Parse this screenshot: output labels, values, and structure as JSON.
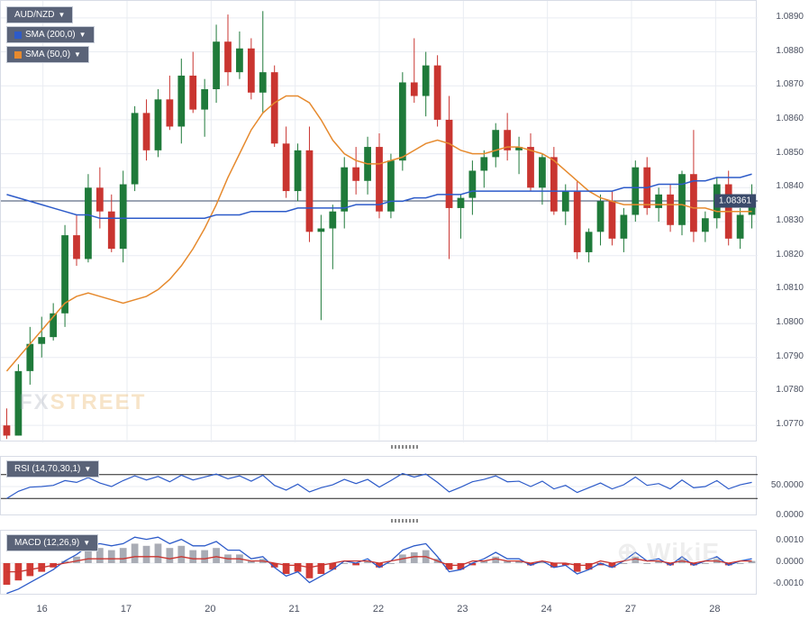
{
  "symbol": "AUD/NZD",
  "indicators": {
    "sma200": {
      "label": "SMA (200,0)",
      "color": "#2d5bc9",
      "sq": "#2d5bc9"
    },
    "sma50": {
      "label": "SMA (50,0)",
      "color": "#e68a2e",
      "sq": "#e68a2e"
    },
    "rsi": {
      "label": "RSI (14,70,30,1)",
      "color": "#2d5bc9"
    },
    "macd": {
      "label": "MACD (12,26,9)",
      "line_color": "#2d5bc9",
      "signal_color": "#c93530",
      "hist_pos": "#a9acb5",
      "hist_neg": "#d13a34"
    }
  },
  "price": {
    "current": "1.08361",
    "ymin": 1.0765,
    "ymax": 1.0895,
    "yticks": [
      "1.0890",
      "1.0880",
      "1.0870",
      "1.0860",
      "1.0850",
      "1.0840",
      "1.0830",
      "1.0820",
      "1.0810",
      "1.0800",
      "1.0790",
      "1.0780",
      "1.0770"
    ],
    "candles": [
      {
        "o": 1.077,
        "h": 1.0775,
        "l": 1.0766,
        "c": 1.0767
      },
      {
        "o": 1.0767,
        "h": 1.0788,
        "l": 1.0767,
        "c": 1.0786
      },
      {
        "o": 1.0786,
        "h": 1.0799,
        "l": 1.0782,
        "c": 1.0794
      },
      {
        "o": 1.0794,
        "h": 1.0802,
        "l": 1.079,
        "c": 1.0796
      },
      {
        "o": 1.0796,
        "h": 1.0806,
        "l": 1.0795,
        "c": 1.0803
      },
      {
        "o": 1.0803,
        "h": 1.0829,
        "l": 1.0799,
        "c": 1.0826
      },
      {
        "o": 1.0826,
        "h": 1.0832,
        "l": 1.0817,
        "c": 1.0819
      },
      {
        "o": 1.0819,
        "h": 1.0844,
        "l": 1.0818,
        "c": 1.084
      },
      {
        "o": 1.084,
        "h": 1.0846,
        "l": 1.0828,
        "c": 1.0833
      },
      {
        "o": 1.0833,
        "h": 1.0838,
        "l": 1.0821,
        "c": 1.0822
      },
      {
        "o": 1.0822,
        "h": 1.0845,
        "l": 1.0818,
        "c": 1.0841
      },
      {
        "o": 1.0841,
        "h": 1.0864,
        "l": 1.0839,
        "c": 1.0862
      },
      {
        "o": 1.0862,
        "h": 1.0866,
        "l": 1.0848,
        "c": 1.0851
      },
      {
        "o": 1.0851,
        "h": 1.0869,
        "l": 1.0849,
        "c": 1.0866
      },
      {
        "o": 1.0866,
        "h": 1.0873,
        "l": 1.0857,
        "c": 1.0858
      },
      {
        "o": 1.0858,
        "h": 1.0878,
        "l": 1.0853,
        "c": 1.0873
      },
      {
        "o": 1.0873,
        "h": 1.088,
        "l": 1.0862,
        "c": 1.0863
      },
      {
        "o": 1.0863,
        "h": 1.0872,
        "l": 1.0855,
        "c": 1.0869
      },
      {
        "o": 1.0869,
        "h": 1.0888,
        "l": 1.0865,
        "c": 1.0883
      },
      {
        "o": 1.0883,
        "h": 1.0891,
        "l": 1.087,
        "c": 1.0874
      },
      {
        "o": 1.0874,
        "h": 1.0886,
        "l": 1.0872,
        "c": 1.0881
      },
      {
        "o": 1.0881,
        "h": 1.0884,
        "l": 1.0866,
        "c": 1.0868
      },
      {
        "o": 1.0868,
        "h": 1.0892,
        "l": 1.0862,
        "c": 1.0874
      },
      {
        "o": 1.0874,
        "h": 1.0876,
        "l": 1.0852,
        "c": 1.0853
      },
      {
        "o": 1.0853,
        "h": 1.0858,
        "l": 1.0837,
        "c": 1.0839
      },
      {
        "o": 1.0839,
        "h": 1.0853,
        "l": 1.0836,
        "c": 1.0851
      },
      {
        "o": 1.0851,
        "h": 1.0858,
        "l": 1.0824,
        "c": 1.0827
      },
      {
        "o": 1.0827,
        "h": 1.0832,
        "l": 1.0801,
        "c": 1.0828
      },
      {
        "o": 1.0828,
        "h": 1.0835,
        "l": 1.0816,
        "c": 1.0833
      },
      {
        "o": 1.0833,
        "h": 1.0849,
        "l": 1.0828,
        "c": 1.0846
      },
      {
        "o": 1.0846,
        "h": 1.0852,
        "l": 1.0838,
        "c": 1.0842
      },
      {
        "o": 1.0842,
        "h": 1.0855,
        "l": 1.0838,
        "c": 1.0852
      },
      {
        "o": 1.0852,
        "h": 1.0856,
        "l": 1.0831,
        "c": 1.0833
      },
      {
        "o": 1.0833,
        "h": 1.085,
        "l": 1.0831,
        "c": 1.0848
      },
      {
        "o": 1.0848,
        "h": 1.0874,
        "l": 1.0845,
        "c": 1.0871
      },
      {
        "o": 1.0871,
        "h": 1.0884,
        "l": 1.0865,
        "c": 1.0867
      },
      {
        "o": 1.0867,
        "h": 1.088,
        "l": 1.0861,
        "c": 1.0876
      },
      {
        "o": 1.0876,
        "h": 1.0879,
        "l": 1.0858,
        "c": 1.086
      },
      {
        "o": 1.086,
        "h": 1.0867,
        "l": 1.0819,
        "c": 1.0834
      },
      {
        "o": 1.0834,
        "h": 1.0838,
        "l": 1.0825,
        "c": 1.0837
      },
      {
        "o": 1.0837,
        "h": 1.0848,
        "l": 1.0832,
        "c": 1.0845
      },
      {
        "o": 1.0845,
        "h": 1.0851,
        "l": 1.084,
        "c": 1.0849
      },
      {
        "o": 1.0849,
        "h": 1.0859,
        "l": 1.0846,
        "c": 1.0857
      },
      {
        "o": 1.0857,
        "h": 1.0862,
        "l": 1.0848,
        "c": 1.0851
      },
      {
        "o": 1.0851,
        "h": 1.0855,
        "l": 1.0844,
        "c": 1.0852
      },
      {
        "o": 1.0852,
        "h": 1.0856,
        "l": 1.0839,
        "c": 1.084
      },
      {
        "o": 1.084,
        "h": 1.085,
        "l": 1.0835,
        "c": 1.0849
      },
      {
        "o": 1.0849,
        "h": 1.0852,
        "l": 1.0832,
        "c": 1.0833
      },
      {
        "o": 1.0833,
        "h": 1.0841,
        "l": 1.0829,
        "c": 1.0839
      },
      {
        "o": 1.0839,
        "h": 1.0842,
        "l": 1.0819,
        "c": 1.0821
      },
      {
        "o": 1.0821,
        "h": 1.0828,
        "l": 1.0818,
        "c": 1.0827
      },
      {
        "o": 1.0827,
        "h": 1.0838,
        "l": 1.0823,
        "c": 1.0836
      },
      {
        "o": 1.0836,
        "h": 1.0839,
        "l": 1.0823,
        "c": 1.0825
      },
      {
        "o": 1.0825,
        "h": 1.0834,
        "l": 1.0821,
        "c": 1.0832
      },
      {
        "o": 1.0832,
        "h": 1.0848,
        "l": 1.083,
        "c": 1.0846
      },
      {
        "o": 1.0846,
        "h": 1.0849,
        "l": 1.0832,
        "c": 1.0834
      },
      {
        "o": 1.0834,
        "h": 1.084,
        "l": 1.083,
        "c": 1.0838
      },
      {
        "o": 1.0838,
        "h": 1.0841,
        "l": 1.0827,
        "c": 1.0829
      },
      {
        "o": 1.0829,
        "h": 1.0845,
        "l": 1.0826,
        "c": 1.0844
      },
      {
        "o": 1.0844,
        "h": 1.0857,
        "l": 1.0824,
        "c": 1.0827
      },
      {
        "o": 1.0827,
        "h": 1.0833,
        "l": 1.0824,
        "c": 1.0831
      },
      {
        "o": 1.0831,
        "h": 1.0843,
        "l": 1.0828,
        "c": 1.0841
      },
      {
        "o": 1.0841,
        "h": 1.0845,
        "l": 1.0823,
        "c": 1.0825
      },
      {
        "o": 1.0825,
        "h": 1.0834,
        "l": 1.0822,
        "c": 1.0832
      },
      {
        "o": 1.0832,
        "h": 1.0841,
        "l": 1.0828,
        "c": 1.0836
      }
    ],
    "sma50": [
      1.0786,
      1.079,
      1.0794,
      1.0798,
      1.0802,
      1.0806,
      1.0808,
      1.0809,
      1.0808,
      1.0807,
      1.0806,
      1.0807,
      1.0808,
      1.081,
      1.0813,
      1.0817,
      1.0822,
      1.0828,
      1.0835,
      1.0843,
      1.085,
      1.0857,
      1.0862,
      1.0865,
      1.0867,
      1.0867,
      1.0865,
      1.086,
      1.0854,
      1.085,
      1.0848,
      1.0847,
      1.0847,
      1.0848,
      1.0849,
      1.0851,
      1.0853,
      1.0854,
      1.0853,
      1.0851,
      1.085,
      1.085,
      1.0851,
      1.0852,
      1.0852,
      1.0851,
      1.085,
      1.0848,
      1.0845,
      1.0842,
      1.0839,
      1.0837,
      1.0836,
      1.0835,
      1.0835,
      1.0835,
      1.0835,
      1.0835,
      1.0835,
      1.0834,
      1.0834,
      1.0833,
      1.0833,
      1.0833,
      1.0833
    ],
    "sma200": [
      1.0838,
      1.0837,
      1.0836,
      1.0835,
      1.0834,
      1.0833,
      1.0832,
      1.0832,
      1.0831,
      1.0831,
      1.0831,
      1.0831,
      1.0831,
      1.0831,
      1.0831,
      1.0831,
      1.0831,
      1.0831,
      1.0832,
      1.0832,
      1.0832,
      1.0833,
      1.0833,
      1.0833,
      1.0833,
      1.0834,
      1.0834,
      1.0834,
      1.0834,
      1.0834,
      1.0835,
      1.0835,
      1.0835,
      1.0836,
      1.0836,
      1.0837,
      1.0837,
      1.0838,
      1.0838,
      1.0838,
      1.0839,
      1.0839,
      1.0839,
      1.0839,
      1.0839,
      1.0839,
      1.0839,
      1.0839,
      1.0839,
      1.0839,
      1.0839,
      1.0839,
      1.0839,
      1.084,
      1.084,
      1.084,
      1.0841,
      1.0841,
      1.0841,
      1.0842,
      1.0842,
      1.0843,
      1.0843,
      1.0843,
      1.0844
    ]
  },
  "rsi": {
    "yticks": [
      "50.0000",
      "0.0000"
    ],
    "upper": 70,
    "lower": 30,
    "values": [
      30,
      42,
      49,
      50,
      52,
      60,
      57,
      65,
      56,
      50,
      60,
      68,
      61,
      67,
      58,
      69,
      61,
      66,
      71,
      63,
      68,
      59,
      69,
      52,
      44,
      54,
      41,
      48,
      53,
      62,
      55,
      62,
      49,
      60,
      72,
      66,
      71,
      57,
      41,
      49,
      58,
      62,
      68,
      58,
      59,
      50,
      59,
      46,
      52,
      40,
      48,
      56,
      46,
      53,
      66,
      52,
      55,
      46,
      61,
      48,
      50,
      60,
      46,
      53,
      57
    ]
  },
  "macd": {
    "yticks": [
      "0.0010",
      "0.0000",
      "-0.0010"
    ],
    "hist": [
      -0.001,
      -0.0008,
      -0.0006,
      -0.0004,
      -0.0002,
      0.0001,
      0.0003,
      0.0006,
      0.0007,
      0.0006,
      0.0007,
      0.0009,
      0.0008,
      0.0009,
      0.0007,
      0.0008,
      0.0006,
      0.0006,
      0.0007,
      0.0004,
      0.0004,
      0.0001,
      0.0002,
      -0.0002,
      -0.0005,
      -0.0004,
      -0.0007,
      -0.0005,
      -0.0003,
      0.0,
      -0.0001,
      0.0001,
      -0.0002,
      0.0,
      0.0004,
      0.0005,
      0.0006,
      0.0002,
      -0.0003,
      -0.0003,
      -0.0001,
      0.0001,
      0.0003,
      0.0001,
      0.0001,
      -0.0001,
      0.0001,
      -0.0002,
      -0.0001,
      -0.0004,
      -0.0003,
      -0.0001,
      -0.0002,
      0.0,
      0.0003,
      0.0,
      0.0001,
      -0.0001,
      0.0002,
      -0.0001,
      0.0,
      0.0002,
      -0.0001,
      0.0,
      0.0001
    ],
    "macd_line": [
      -0.0014,
      -0.0012,
      -0.0009,
      -0.0006,
      -0.0003,
      0.0001,
      0.0004,
      0.0008,
      0.0009,
      0.0008,
      0.0009,
      0.0012,
      0.0011,
      0.0012,
      0.0009,
      0.0011,
      0.0008,
      0.0008,
      0.001,
      0.0006,
      0.0006,
      0.0002,
      0.0003,
      -0.0002,
      -0.0006,
      -0.0004,
      -0.0009,
      -0.0006,
      -0.0003,
      0.0001,
      0.0,
      0.0002,
      -0.0002,
      0.0001,
      0.0006,
      0.0008,
      0.0009,
      0.0003,
      -0.0004,
      -0.0003,
      0.0,
      0.0002,
      0.0005,
      0.0002,
      0.0002,
      -0.0001,
      0.0001,
      -0.0002,
      -0.0001,
      -0.0005,
      -0.0003,
      0.0,
      -0.0002,
      0.0001,
      0.0005,
      0.0001,
      0.0002,
      -0.0001,
      0.0003,
      -0.0001,
      0.0001,
      0.0003,
      -0.0001,
      0.0001,
      0.0002
    ],
    "signal": [
      -0.0004,
      -0.0004,
      -0.0003,
      -0.0002,
      -0.0001,
      0.0,
      0.0001,
      0.0002,
      0.0002,
      0.0002,
      0.0002,
      0.0003,
      0.0003,
      0.0003,
      0.0002,
      0.0003,
      0.0002,
      0.0002,
      0.0003,
      0.0002,
      0.0002,
      0.0001,
      0.0001,
      0.0,
      -0.0001,
      -0.0001,
      -0.0002,
      -0.0001,
      0.0,
      0.0001,
      0.0001,
      0.0001,
      0.0,
      0.0001,
      0.0002,
      0.0003,
      0.0003,
      0.0001,
      -0.0001,
      -0.0001,
      0.0001,
      0.0001,
      0.0002,
      0.0001,
      0.0001,
      0.0,
      0.0001,
      0.0,
      0.0,
      -0.0001,
      -0.0001,
      0.0001,
      0.0,
      0.0001,
      0.0002,
      0.0001,
      0.0001,
      0.0,
      0.0001,
      0.0,
      0.0001,
      0.0001,
      0.0,
      0.0001,
      0.0001
    ]
  },
  "xaxis": {
    "labels": [
      "16",
      "17",
      "20",
      "21",
      "22",
      "23",
      "24",
      "27",
      "28"
    ]
  },
  "style": {
    "candle_up": "#1f7a3a",
    "candle_dn": "#c93530",
    "grid": "#e9ecf2",
    "border": "#d8dce6",
    "bg": "#ffffff",
    "text": "#4a5060",
    "legend_bg": "#5a6378"
  },
  "watermark": {
    "fx": "FX",
    "street": "STREET"
  }
}
